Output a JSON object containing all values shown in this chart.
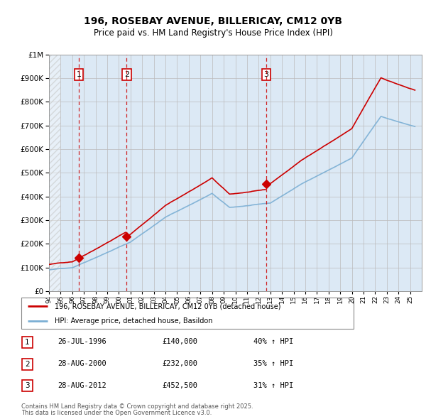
{
  "title": "196, ROSEBAY AVENUE, BILLERICAY, CM12 0YB",
  "subtitle": "Price paid vs. HM Land Registry's House Price Index (HPI)",
  "legend_line1": "196, ROSEBAY AVENUE, BILLERICAY, CM12 0YB (detached house)",
  "legend_line2": "HPI: Average price, detached house, Basildon",
  "footer_line1": "Contains HM Land Registry data © Crown copyright and database right 2025.",
  "footer_line2": "This data is licensed under the Open Government Licence v3.0.",
  "sales": [
    {
      "num": 1,
      "date": "26-JUL-1996",
      "price": "£140,000",
      "hpi": "40% ↑ HPI",
      "year": 1996.57
    },
    {
      "num": 2,
      "date": "28-AUG-2000",
      "price": "£232,000",
      "hpi": "35% ↑ HPI",
      "year": 2000.66
    },
    {
      "num": 3,
      "date": "28-AUG-2012",
      "price": "£452,500",
      "hpi": "31% ↑ HPI",
      "year": 2012.66
    }
  ],
  "sale_prices": [
    140000,
    232000,
    452500
  ],
  "background_color": "#dce9f5",
  "grid_color": "#aaaaaa",
  "red_line_color": "#cc0000",
  "blue_line_color": "#7bafd4",
  "xmin": 1994,
  "xmax": 2026,
  "ymin": 0,
  "ymax": 1000000
}
